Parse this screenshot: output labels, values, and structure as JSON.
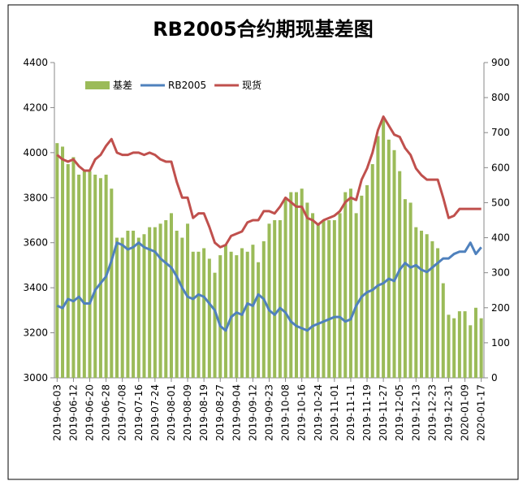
{
  "chart_data": {
    "type": "bar-line",
    "title": "RB2005合约期现基差图",
    "categories": [
      "2019-06-03",
      null,
      null,
      "2019-06-12",
      null,
      null,
      "2019-06-20",
      null,
      null,
      "2019-06-28",
      null,
      null,
      "2019-07-08",
      null,
      null,
      "2019-07-16",
      null,
      null,
      "2019-07-24",
      null,
      null,
      "2019-08-01",
      null,
      null,
      "2019-08-09",
      null,
      null,
      "2019-08-19",
      null,
      null,
      "2019-08-27",
      null,
      null,
      "2019-09-04",
      null,
      null,
      "2019-09-12",
      null,
      null,
      "2019-09-23",
      null,
      null,
      "2019-10-08",
      null,
      null,
      "2019-10-16",
      null,
      null,
      "2019-10-24",
      null,
      null,
      "2019-11-01",
      null,
      null,
      "2019-11-11",
      null,
      null,
      "2019-11-19",
      null,
      null,
      "2019-11-27",
      null,
      null,
      "2019-12-05",
      null,
      null,
      "2019-12-13",
      null,
      null,
      "2019-12-23",
      null,
      null,
      "2019-12-31",
      null,
      null,
      "2020-01-09",
      null,
      null,
      "2020-01-17"
    ],
    "series": [
      {
        "name": "基差",
        "kind": "bar",
        "axis": "y2",
        "color": "#9bbb59",
        "values": [
          670,
          660,
          610,
          630,
          580,
          590,
          590,
          580,
          570,
          580,
          540,
          400,
          400,
          420,
          420,
          400,
          410,
          430,
          430,
          440,
          450,
          470,
          420,
          400,
          440,
          360,
          360,
          370,
          340,
          300,
          350,
          380,
          360,
          350,
          370,
          360,
          380,
          330,
          390,
          440,
          450,
          450,
          510,
          530,
          530,
          540,
          500,
          470,
          440,
          450,
          450,
          450,
          470,
          530,
          540,
          470,
          520,
          550,
          610,
          690,
          740,
          680,
          650,
          590,
          510,
          500,
          430,
          420,
          410,
          390,
          370,
          270,
          180,
          170,
          190,
          190,
          150,
          200,
          170
        ]
      },
      {
        "name": "RB2005",
        "kind": "line",
        "color": "#4f81bd",
        "values": [
          3320,
          3310,
          3350,
          3340,
          3360,
          3330,
          3330,
          3390,
          3420,
          3450,
          3520,
          3600,
          3590,
          3570,
          3580,
          3600,
          3580,
          3570,
          3560,
          3530,
          3510,
          3490,
          3450,
          3400,
          3360,
          3350,
          3370,
          3360,
          3330,
          3300,
          3230,
          3210,
          3270,
          3290,
          3280,
          3330,
          3320,
          3370,
          3350,
          3300,
          3280,
          3310,
          3290,
          3250,
          3230,
          3220,
          3210,
          3230,
          3240,
          3250,
          3260,
          3270,
          3270,
          3250,
          3260,
          3320,
          3360,
          3380,
          3390,
          3410,
          3420,
          3440,
          3430,
          3480,
          3510,
          3490,
          3500,
          3480,
          3470,
          3490,
          3510,
          3530,
          3530,
          3550,
          3560,
          3560,
          3600,
          3550,
          3580
        ]
      },
      {
        "name": "现货",
        "kind": "line",
        "color": "#c0504d",
        "values": [
          3990,
          3970,
          3960,
          3970,
          3940,
          3920,
          3920,
          3970,
          3990,
          4030,
          4060,
          4000,
          3990,
          3990,
          4000,
          4000,
          3990,
          4000,
          3990,
          3970,
          3960,
          3960,
          3870,
          3800,
          3800,
          3710,
          3730,
          3730,
          3670,
          3600,
          3580,
          3590,
          3630,
          3640,
          3650,
          3690,
          3700,
          3700,
          3740,
          3740,
          3730,
          3760,
          3800,
          3780,
          3760,
          3760,
          3710,
          3700,
          3680,
          3700,
          3710,
          3720,
          3740,
          3780,
          3800,
          3790,
          3880,
          3930,
          4000,
          4100,
          4160,
          4120,
          4080,
          4070,
          4020,
          3990,
          3930,
          3900,
          3880,
          3880,
          3880,
          3800,
          3710,
          3720,
          3750,
          3750,
          3750,
          3750,
          3750
        ]
      }
    ],
    "ylim": [
      3000,
      4400
    ],
    "yticks": [
      3000,
      3200,
      3400,
      3600,
      3800,
      4000,
      4200,
      4400
    ],
    "y2lim": [
      0,
      900
    ],
    "y2ticks": [
      0,
      100,
      200,
      300,
      400,
      500,
      600,
      700,
      800,
      900
    ],
    "legend": "top-left",
    "grid": false
  }
}
